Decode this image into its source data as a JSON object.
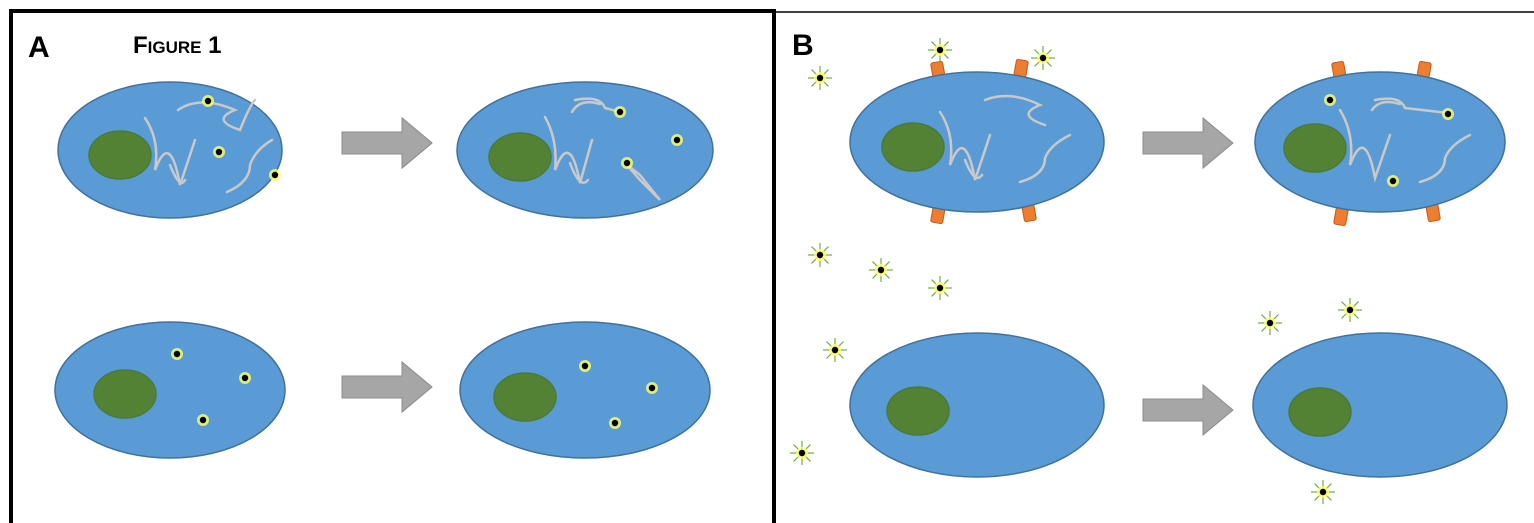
{
  "figure_title": "Figure 1",
  "panels": [
    {
      "label": "A"
    },
    {
      "label": "B"
    }
  ]
}
